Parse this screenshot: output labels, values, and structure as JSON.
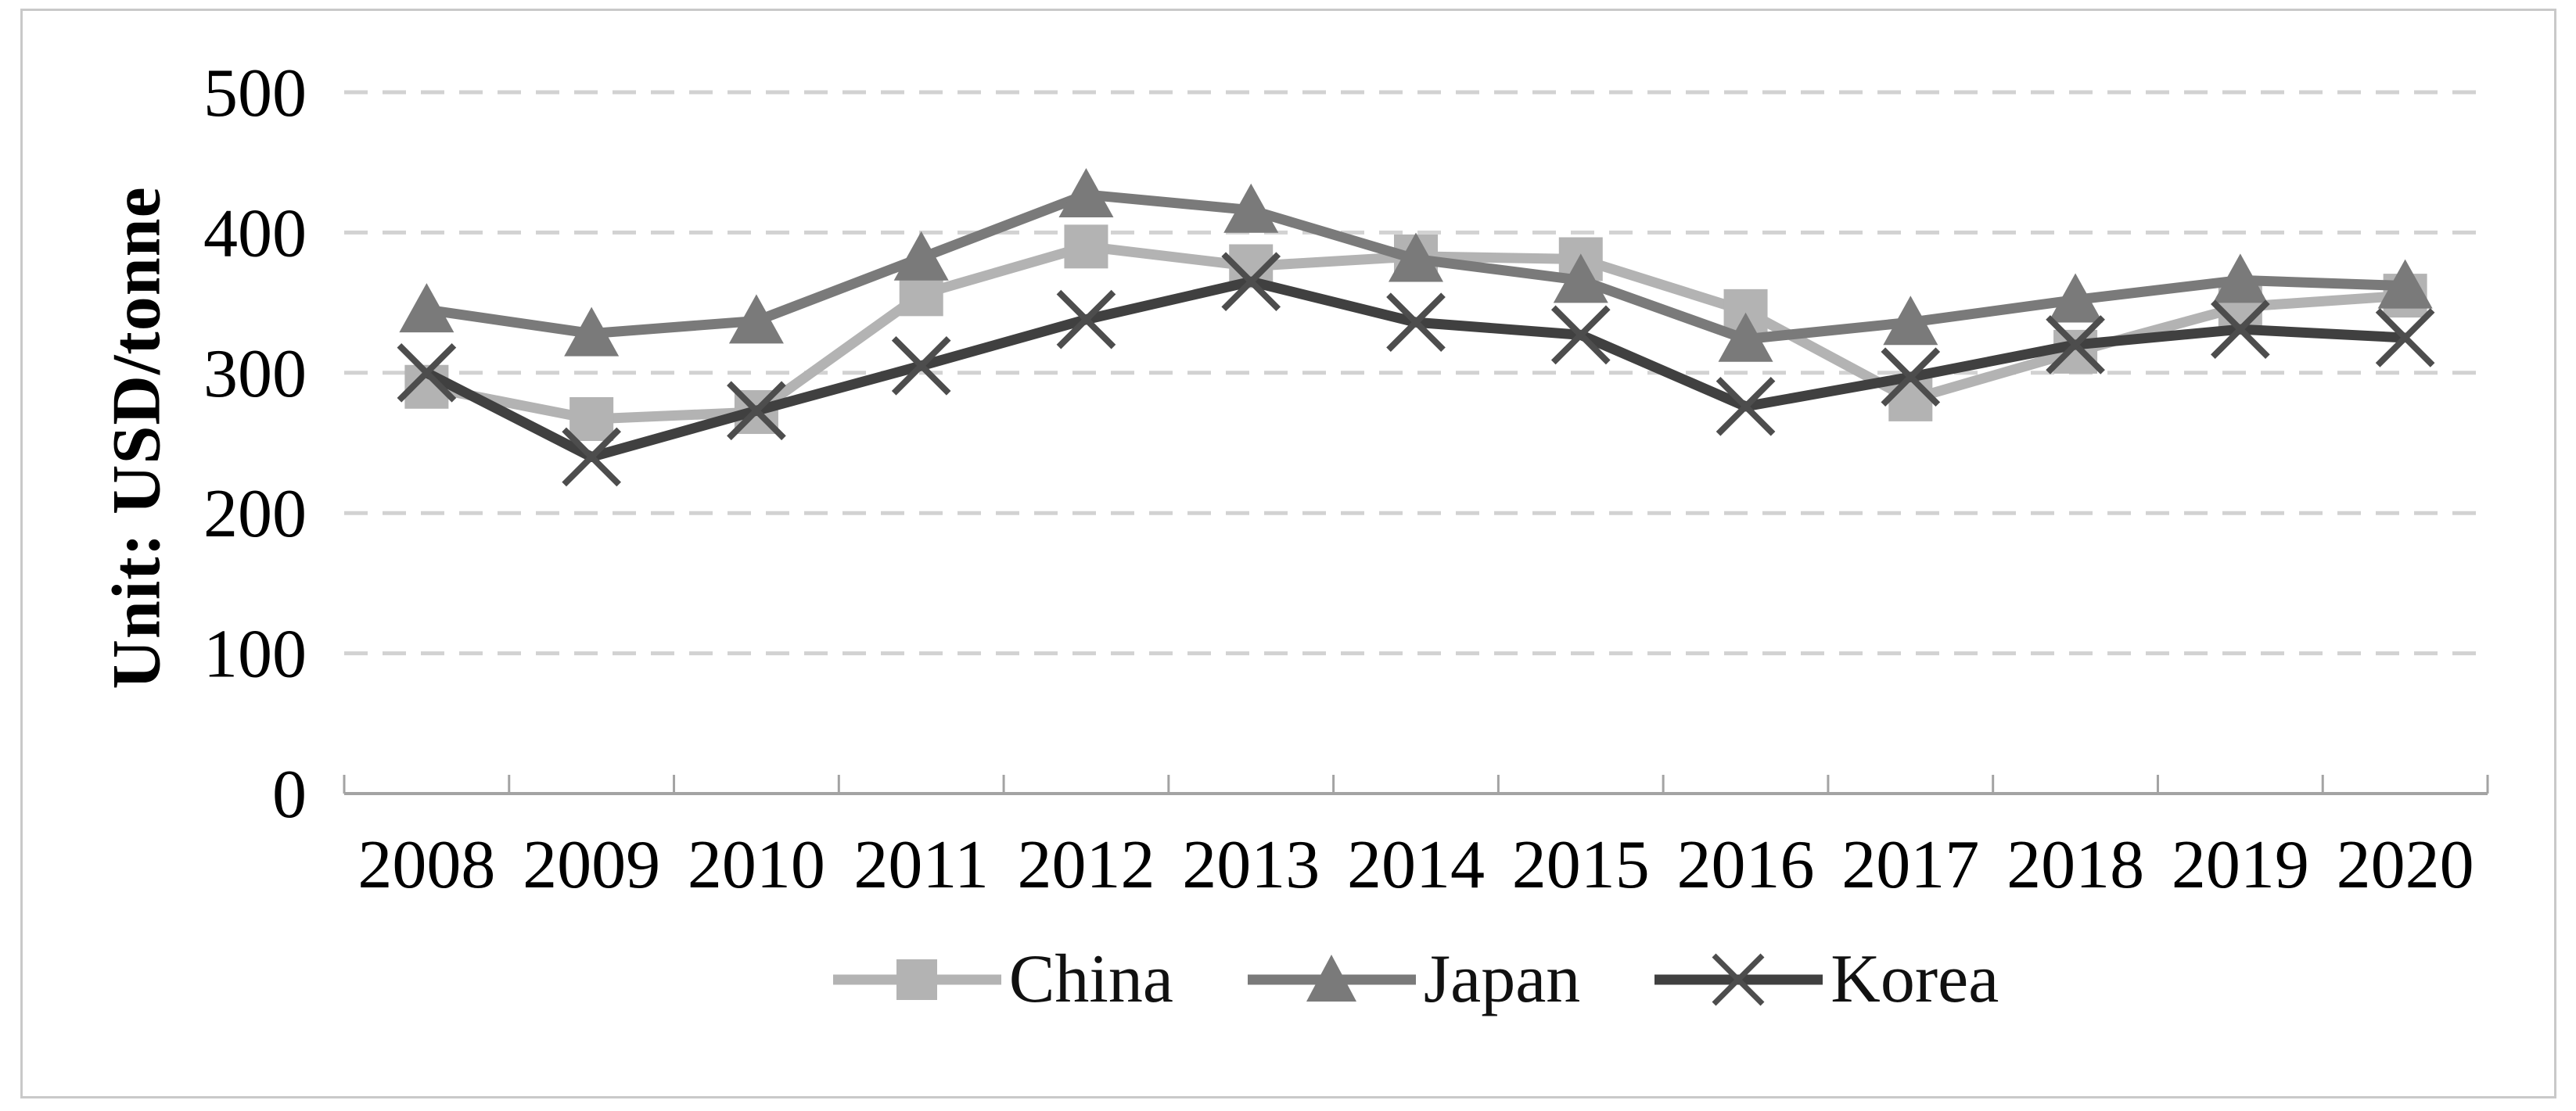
{
  "figure": {
    "background": "#ffffff",
    "border_color": "#c9c9c9"
  },
  "chart_data": {
    "type": "line",
    "title": "",
    "xlabel": "",
    "ylabel": "Unit: USD/tonne",
    "categories": [
      "2008",
      "2009",
      "2010",
      "2011",
      "2012",
      "2013",
      "2014",
      "2015",
      "2016",
      "2017",
      "2018",
      "2019",
      "2020"
    ],
    "series": [
      {
        "name": "China",
        "marker": "square",
        "color": "#b3b3b3",
        "marker_color": "#b3b3b3",
        "values": [
          290,
          267,
          272,
          356,
          390,
          376,
          383,
          381,
          344,
          281,
          315,
          347,
          355
        ]
      },
      {
        "name": "Japan",
        "marker": "triangle",
        "color": "#7a7a7a",
        "marker_color": "#7a7a7a",
        "values": [
          345,
          328,
          337,
          382,
          427,
          416,
          381,
          366,
          324,
          336,
          352,
          366,
          362
        ]
      },
      {
        "name": "Korea",
        "marker": "x",
        "color": "#404040",
        "marker_color": "#4d4d4d",
        "values": [
          300,
          240,
          273,
          305,
          338,
          365,
          336,
          327,
          276,
          297,
          320,
          331,
          325
        ]
      }
    ],
    "ylim": [
      0,
      500
    ],
    "y_ticks": [
      0,
      100,
      200,
      300,
      400,
      500
    ],
    "grid": "horizontal-dashed",
    "gridline_color": "#d2d2d2",
    "axis_color": "#a3a3a3",
    "tick_label_color": "#000000",
    "legend_position": "bottom"
  }
}
